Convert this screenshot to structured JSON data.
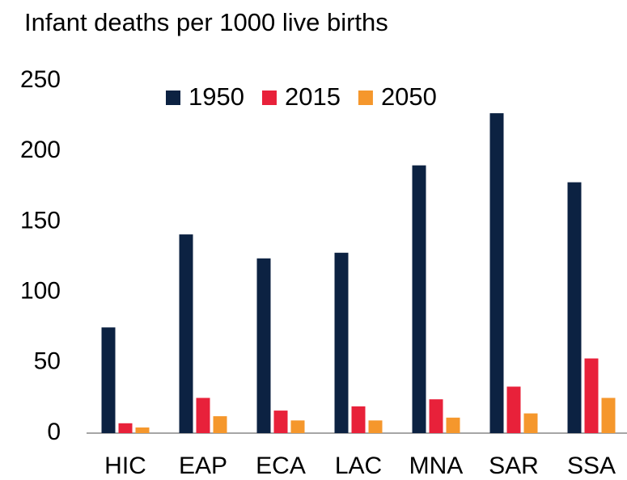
{
  "chart_data": {
    "type": "bar",
    "title": "Infant deaths per 1000 live births",
    "categories": [
      "HIC",
      "EAP",
      "ECA",
      "LAC",
      "MNA",
      "SAR",
      "SSA"
    ],
    "series": [
      {
        "name": "1950",
        "color": "#0c2242",
        "values": [
          75,
          141,
          124,
          128,
          190,
          227,
          178
        ]
      },
      {
        "name": "2015",
        "color": "#e8213a",
        "values": [
          7,
          25,
          16,
          19,
          24,
          33,
          53
        ]
      },
      {
        "name": "2050",
        "color": "#f5972c",
        "values": [
          4,
          12,
          9,
          9,
          11,
          14,
          25
        ]
      }
    ],
    "ylim": [
      0,
      250
    ],
    "yticks": [
      0,
      50,
      100,
      150,
      200,
      250
    ],
    "grid": false,
    "legend": "top"
  }
}
